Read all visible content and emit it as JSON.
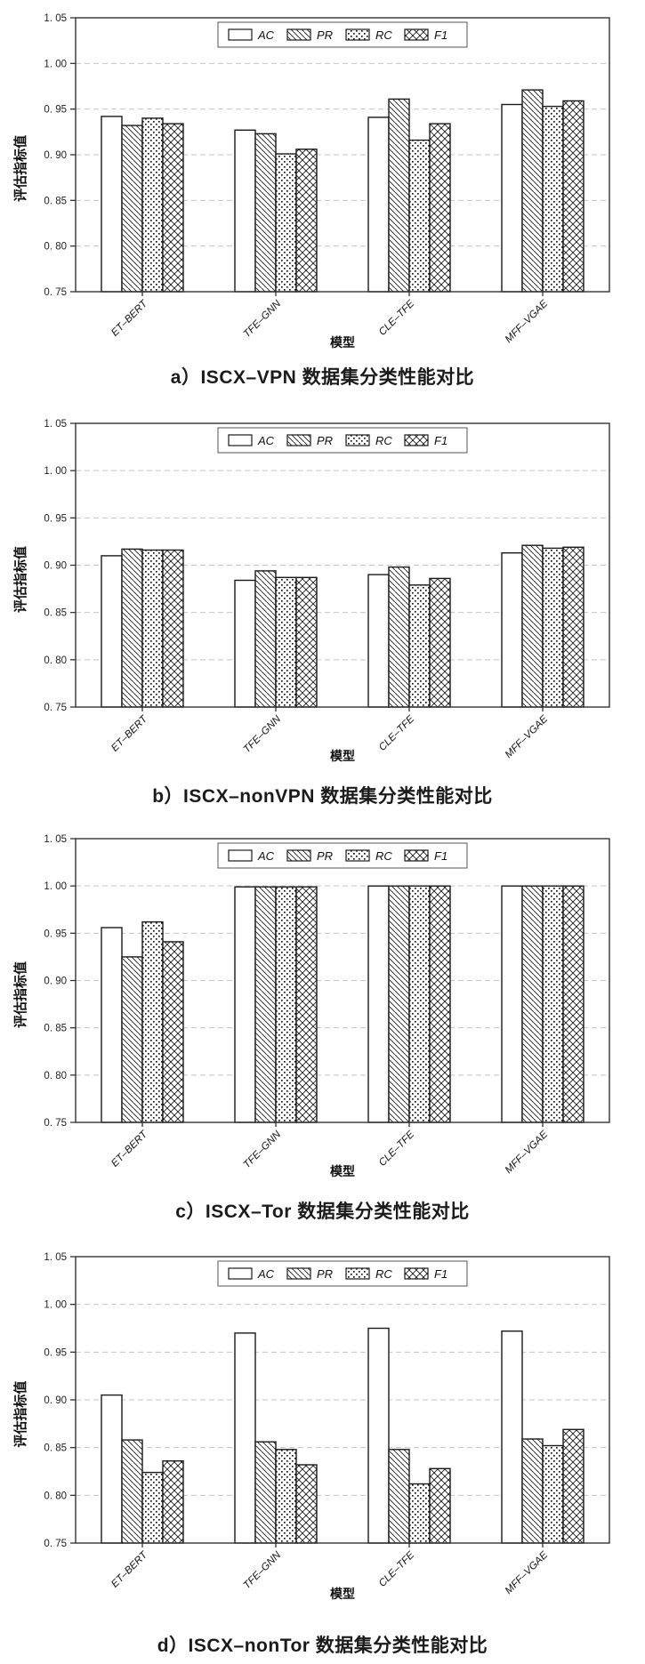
{
  "colors": {
    "background": "#ffffff",
    "bar_fill": "#ffffff",
    "bar_stroke": "#1a1a1a",
    "grid": "#c4c4c4",
    "text": "#222222"
  },
  "chart_data": [
    {
      "id": "a",
      "type": "bar",
      "caption": "a）ISCX–VPN 数据集分类性能对比",
      "xlabel": "模型",
      "ylabel": "评估指标值",
      "ylim": [
        0.75,
        1.05
      ],
      "ytick_labels": [
        "1. 05",
        "1. 00",
        "0. 95",
        "0. 90",
        "0. 85",
        "0. 80",
        "0. 75"
      ],
      "grid": "dashed-horizontal",
      "legend_position": "top-center",
      "categories": [
        "ET–BERT",
        "TFE–GNN",
        "CLE–TFE",
        "MFF–VGAE"
      ],
      "series": [
        {
          "name": "AC",
          "hatch": "none",
          "values": [
            0.942,
            0.927,
            0.941,
            0.955
          ]
        },
        {
          "name": "PR",
          "hatch": "diagonal",
          "values": [
            0.932,
            0.923,
            0.961,
            0.971
          ]
        },
        {
          "name": "RC",
          "hatch": "dots",
          "values": [
            0.94,
            0.901,
            0.916,
            0.953
          ]
        },
        {
          "name": "F1",
          "hatch": "crosshatch",
          "values": [
            0.934,
            0.906,
            0.934,
            0.959
          ]
        }
      ]
    },
    {
      "id": "b",
      "type": "bar",
      "caption": "b）ISCX–nonVPN 数据集分类性能对比",
      "xlabel": "模型",
      "ylabel": "评估指标值",
      "ylim": [
        0.75,
        1.05
      ],
      "ytick_labels": [
        "1. 05",
        "1. 00",
        "0. 95",
        "0. 90",
        "0. 85",
        "0. 80",
        "0. 75"
      ],
      "grid": "dashed-horizontal",
      "legend_position": "top-center",
      "categories": [
        "ET–BERT",
        "TFE–GNN",
        "CLE–TFE",
        "MFF–VGAE"
      ],
      "series": [
        {
          "name": "AC",
          "hatch": "none",
          "values": [
            0.91,
            0.884,
            0.89,
            0.913
          ]
        },
        {
          "name": "PR",
          "hatch": "diagonal",
          "values": [
            0.917,
            0.894,
            0.898,
            0.921
          ]
        },
        {
          "name": "RC",
          "hatch": "dots",
          "values": [
            0.916,
            0.887,
            0.879,
            0.918
          ]
        },
        {
          "name": "F1",
          "hatch": "crosshatch",
          "values": [
            0.916,
            0.887,
            0.886,
            0.919
          ]
        }
      ]
    },
    {
      "id": "c",
      "type": "bar",
      "caption": "c）ISCX–Tor 数据集分类性能对比",
      "xlabel": "模型",
      "ylabel": "评估指标值",
      "ylim": [
        0.75,
        1.05
      ],
      "ytick_labels": [
        "1. 05",
        "1. 00",
        "0. 95",
        "0. 90",
        "0. 85",
        "0. 80",
        "0. 75"
      ],
      "grid": "dashed-horizontal",
      "legend_position": "top-center",
      "categories": [
        "ET–BERT",
        "TFE–GNN",
        "CLE–TFE",
        "MFF–VGAE"
      ],
      "series": [
        {
          "name": "AC",
          "hatch": "none",
          "values": [
            0.956,
            0.999,
            1.0,
            1.0
          ]
        },
        {
          "name": "PR",
          "hatch": "diagonal",
          "values": [
            0.925,
            0.999,
            1.0,
            1.0
          ]
        },
        {
          "name": "RC",
          "hatch": "dots",
          "values": [
            0.962,
            0.999,
            1.0,
            1.0
          ]
        },
        {
          "name": "F1",
          "hatch": "crosshatch",
          "values": [
            0.941,
            0.999,
            1.0,
            1.0
          ]
        }
      ]
    },
    {
      "id": "d",
      "type": "bar",
      "caption": "d）ISCX–nonTor 数据集分类性能对比",
      "xlabel": "模型",
      "ylabel": "评估指标值",
      "ylim": [
        0.75,
        1.05
      ],
      "ytick_labels": [
        "1. 05",
        "1. 00",
        "0. 95",
        "0. 90",
        "0. 85",
        "0. 80",
        "0. 75"
      ],
      "grid": "dashed-horizontal",
      "legend_position": "top-center",
      "categories": [
        "ET–BERT",
        "TFE–GNN",
        "CLE–TFE",
        "MFF–VGAE"
      ],
      "series": [
        {
          "name": "AC",
          "hatch": "none",
          "values": [
            0.905,
            0.97,
            0.975,
            0.972
          ]
        },
        {
          "name": "PR",
          "hatch": "diagonal",
          "values": [
            0.858,
            0.856,
            0.848,
            0.859
          ]
        },
        {
          "name": "RC",
          "hatch": "dots",
          "values": [
            0.824,
            0.848,
            0.812,
            0.852
          ]
        },
        {
          "name": "F1",
          "hatch": "crosshatch",
          "values": [
            0.836,
            0.832,
            0.828,
            0.869
          ]
        }
      ]
    }
  ]
}
